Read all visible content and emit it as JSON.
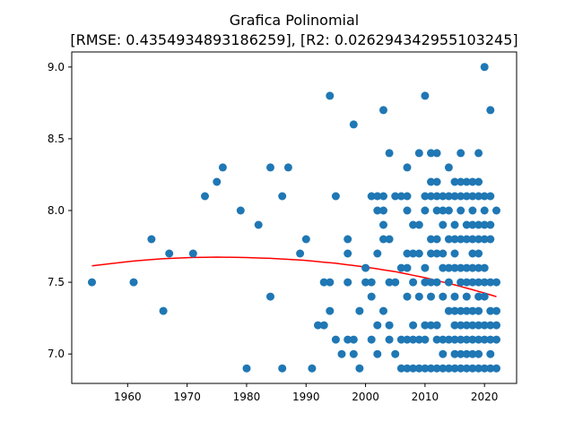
{
  "chart_data": {
    "type": "scatter",
    "title": "Grafica Polinomial",
    "subtitle": "[RMSE: 0.4354934893186259], [R2: 0.026294342955103245]",
    "xlabel": "",
    "ylabel": "",
    "xlim": [
      1950.6,
      2025.4
    ],
    "ylim": [
      6.795,
      9.105
    ],
    "x_ticks": [
      1960,
      1970,
      1980,
      1990,
      2000,
      2010,
      2020
    ],
    "y_ticks": [
      7.0,
      7.5,
      8.0,
      8.5,
      9.0
    ],
    "y_tick_labels": [
      "7.0",
      "7.5",
      "8.0",
      "8.5",
      "9.0"
    ],
    "grid": false,
    "colors": {
      "points": "#1f77b4",
      "fit": "#ff0000"
    },
    "series": [
      {
        "kind": "scatter",
        "points": [
          [
            1954,
            7.5
          ],
          [
            1961,
            7.5
          ],
          [
            1964,
            7.8
          ],
          [
            1966,
            7.3
          ],
          [
            1967,
            7.7
          ],
          [
            1971,
            7.7
          ],
          [
            1973,
            8.1
          ],
          [
            1975,
            8.2
          ],
          [
            1976,
            8.3
          ],
          [
            1979,
            8.0
          ],
          [
            1980,
            6.9
          ],
          [
            1982,
            7.9
          ],
          [
            1984,
            7.4
          ],
          [
            1984,
            8.3
          ],
          [
            1986,
            8.1
          ],
          [
            1986,
            6.9
          ],
          [
            1987,
            8.3
          ],
          [
            1989,
            7.7
          ],
          [
            1990,
            7.8
          ],
          [
            1991,
            6.9
          ],
          [
            1992,
            7.2
          ],
          [
            1993,
            7.2
          ],
          [
            1993,
            7.5
          ],
          [
            1994,
            8.8
          ],
          [
            1994,
            7.3
          ],
          [
            1994,
            7.5
          ],
          [
            1995,
            8.1
          ],
          [
            1995,
            7.1
          ],
          [
            1996,
            7.0
          ],
          [
            1997,
            7.8
          ],
          [
            1997,
            7.7
          ],
          [
            1997,
            7.1
          ],
          [
            1997,
            7.5
          ],
          [
            1998,
            8.6
          ],
          [
            1998,
            7.0
          ],
          [
            1998,
            7.1
          ],
          [
            1999,
            6.9
          ],
          [
            1999,
            7.3
          ],
          [
            2000,
            7.5
          ],
          [
            2000,
            7.6
          ],
          [
            2001,
            8.1
          ],
          [
            2001,
            7.5
          ],
          [
            2001,
            7.4
          ],
          [
            2001,
            7.1
          ],
          [
            2002,
            8.1
          ],
          [
            2002,
            8.0
          ],
          [
            2002,
            7.7
          ],
          [
            2002,
            7.2
          ],
          [
            2002,
            7.0
          ],
          [
            2003,
            8.7
          ],
          [
            2003,
            8.1
          ],
          [
            2003,
            8.0
          ],
          [
            2003,
            7.9
          ],
          [
            2003,
            7.8
          ],
          [
            2003,
            7.3
          ],
          [
            2004,
            8.4
          ],
          [
            2004,
            7.8
          ],
          [
            2004,
            7.5
          ],
          [
            2004,
            7.2
          ],
          [
            2004,
            7.1
          ],
          [
            2005,
            8.1
          ],
          [
            2005,
            7.5
          ],
          [
            2005,
            7.0
          ],
          [
            2006,
            8.1
          ],
          [
            2006,
            7.6
          ],
          [
            2006,
            7.1
          ],
          [
            2006,
            6.9
          ],
          [
            2007,
            8.3
          ],
          [
            2007,
            8.1
          ],
          [
            2007,
            8.0
          ],
          [
            2007,
            7.7
          ],
          [
            2007,
            7.6
          ],
          [
            2007,
            7.4
          ],
          [
            2007,
            7.1
          ],
          [
            2007,
            6.9
          ],
          [
            2008,
            7.9
          ],
          [
            2008,
            7.7
          ],
          [
            2008,
            7.5
          ],
          [
            2008,
            7.2
          ],
          [
            2008,
            7.1
          ],
          [
            2008,
            6.9
          ],
          [
            2009,
            8.4
          ],
          [
            2009,
            7.9
          ],
          [
            2009,
            7.7
          ],
          [
            2009,
            7.4
          ],
          [
            2009,
            7.1
          ],
          [
            2009,
            6.9
          ],
          [
            2010,
            8.8
          ],
          [
            2010,
            8.1
          ],
          [
            2010,
            8.0
          ],
          [
            2010,
            7.6
          ],
          [
            2010,
            7.5
          ],
          [
            2010,
            7.2
          ],
          [
            2010,
            7.1
          ],
          [
            2010,
            6.9
          ],
          [
            2011,
            8.4
          ],
          [
            2011,
            8.2
          ],
          [
            2011,
            8.1
          ],
          [
            2011,
            7.8
          ],
          [
            2011,
            7.7
          ],
          [
            2011,
            7.5
          ],
          [
            2011,
            7.4
          ],
          [
            2011,
            7.2
          ],
          [
            2011,
            6.9
          ],
          [
            2012,
            8.4
          ],
          [
            2012,
            8.2
          ],
          [
            2012,
            8.1
          ],
          [
            2012,
            8.0
          ],
          [
            2012,
            7.8
          ],
          [
            2012,
            7.7
          ],
          [
            2012,
            7.5
          ],
          [
            2012,
            7.2
          ],
          [
            2012,
            7.1
          ],
          [
            2012,
            6.9
          ],
          [
            2013,
            8.1
          ],
          [
            2013,
            8.0
          ],
          [
            2013,
            7.9
          ],
          [
            2013,
            7.7
          ],
          [
            2013,
            7.6
          ],
          [
            2013,
            7.4
          ],
          [
            2013,
            7.1
          ],
          [
            2013,
            7.0
          ],
          [
            2013,
            6.9
          ],
          [
            2014,
            8.3
          ],
          [
            2014,
            8.1
          ],
          [
            2014,
            8.0
          ],
          [
            2014,
            7.8
          ],
          [
            2014,
            7.6
          ],
          [
            2014,
            7.5
          ],
          [
            2014,
            7.3
          ],
          [
            2014,
            7.1
          ],
          [
            2014,
            6.9
          ],
          [
            2015,
            8.2
          ],
          [
            2015,
            8.1
          ],
          [
            2015,
            7.9
          ],
          [
            2015,
            7.8
          ],
          [
            2015,
            7.7
          ],
          [
            2015,
            7.6
          ],
          [
            2015,
            7.4
          ],
          [
            2015,
            7.3
          ],
          [
            2015,
            7.2
          ],
          [
            2015,
            7.1
          ],
          [
            2015,
            7.0
          ],
          [
            2015,
            6.9
          ],
          [
            2016,
            8.4
          ],
          [
            2016,
            8.2
          ],
          [
            2016,
            8.1
          ],
          [
            2016,
            8.0
          ],
          [
            2016,
            7.8
          ],
          [
            2016,
            7.6
          ],
          [
            2016,
            7.5
          ],
          [
            2016,
            7.3
          ],
          [
            2016,
            7.2
          ],
          [
            2016,
            7.1
          ],
          [
            2016,
            7.0
          ],
          [
            2016,
            6.9
          ],
          [
            2017,
            8.2
          ],
          [
            2017,
            8.1
          ],
          [
            2017,
            7.9
          ],
          [
            2017,
            7.8
          ],
          [
            2017,
            7.6
          ],
          [
            2017,
            7.5
          ],
          [
            2017,
            7.4
          ],
          [
            2017,
            7.3
          ],
          [
            2017,
            7.2
          ],
          [
            2017,
            7.1
          ],
          [
            2017,
            7.0
          ],
          [
            2017,
            6.9
          ],
          [
            2018,
            8.2
          ],
          [
            2018,
            8.1
          ],
          [
            2018,
            8.0
          ],
          [
            2018,
            7.9
          ],
          [
            2018,
            7.8
          ],
          [
            2018,
            7.7
          ],
          [
            2018,
            7.6
          ],
          [
            2018,
            7.5
          ],
          [
            2018,
            7.3
          ],
          [
            2018,
            7.2
          ],
          [
            2018,
            7.1
          ],
          [
            2018,
            7.0
          ],
          [
            2018,
            6.9
          ],
          [
            2019,
            8.4
          ],
          [
            2019,
            8.2
          ],
          [
            2019,
            8.1
          ],
          [
            2019,
            7.9
          ],
          [
            2019,
            7.8
          ],
          [
            2019,
            7.7
          ],
          [
            2019,
            7.6
          ],
          [
            2019,
            7.5
          ],
          [
            2019,
            7.4
          ],
          [
            2019,
            7.3
          ],
          [
            2019,
            7.2
          ],
          [
            2019,
            7.1
          ],
          [
            2019,
            7.0
          ],
          [
            2019,
            6.9
          ],
          [
            2020,
            9.0
          ],
          [
            2020,
            8.1
          ],
          [
            2020,
            8.0
          ],
          [
            2020,
            7.9
          ],
          [
            2020,
            7.8
          ],
          [
            2020,
            7.6
          ],
          [
            2020,
            7.5
          ],
          [
            2020,
            7.4
          ],
          [
            2020,
            7.2
          ],
          [
            2020,
            7.1
          ],
          [
            2020,
            6.9
          ],
          [
            2021,
            8.7
          ],
          [
            2021,
            8.1
          ],
          [
            2021,
            7.9
          ],
          [
            2021,
            7.8
          ],
          [
            2021,
            7.5
          ],
          [
            2021,
            7.3
          ],
          [
            2021,
            7.2
          ],
          [
            2021,
            7.1
          ],
          [
            2021,
            7.0
          ],
          [
            2021,
            6.9
          ],
          [
            2022,
            8.0
          ],
          [
            2022,
            7.5
          ],
          [
            2022,
            7.3
          ],
          [
            2022,
            7.2
          ],
          [
            2022,
            7.1
          ],
          [
            2022,
            6.9
          ]
        ]
      },
      {
        "kind": "line",
        "description_points": [
          [
            1954,
            7.615
          ],
          [
            1961,
            7.648
          ],
          [
            1965,
            7.662
          ],
          [
            1970,
            7.672
          ],
          [
            1975,
            7.675
          ],
          [
            1980,
            7.672
          ],
          [
            1985,
            7.665
          ],
          [
            1990,
            7.652
          ],
          [
            1995,
            7.632
          ],
          [
            2000,
            7.606
          ],
          [
            2005,
            7.574
          ],
          [
            2010,
            7.532
          ],
          [
            2015,
            7.482
          ],
          [
            2020,
            7.425
          ],
          [
            2022,
            7.4
          ]
        ]
      }
    ]
  }
}
